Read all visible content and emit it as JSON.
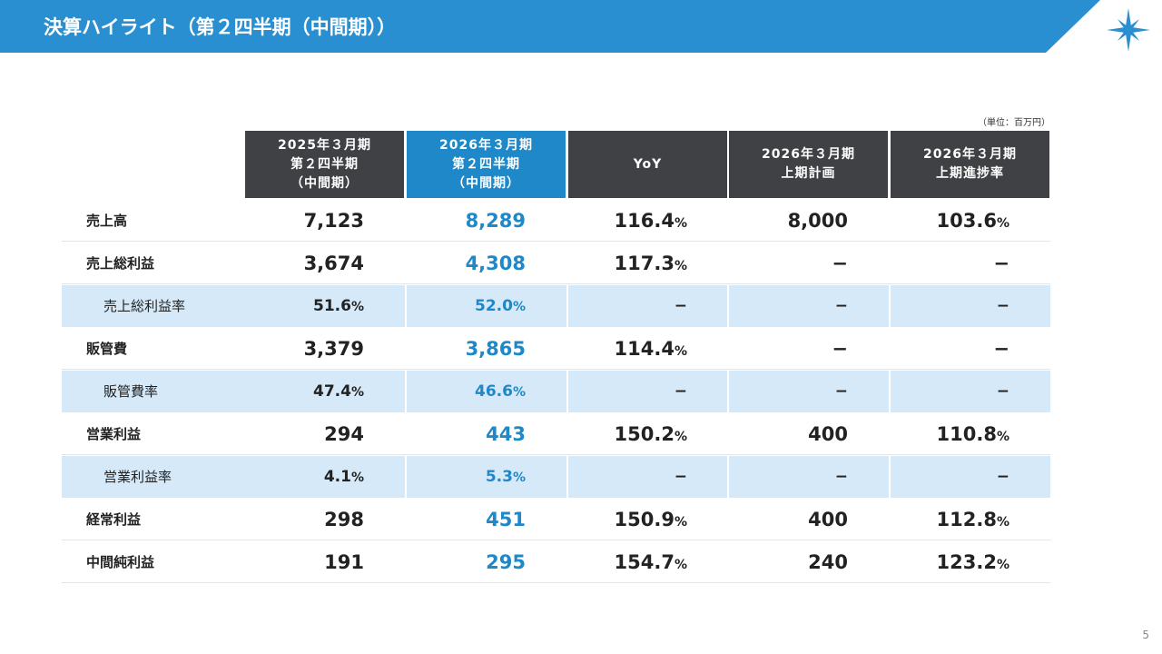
{
  "header": {
    "title": "決算ハイライト（第２四半期（中間期））"
  },
  "unit": "（単位：百万円）",
  "table": {
    "columns": [
      [
        "2025年３月期",
        "第２四半期",
        "（中間期）"
      ],
      [
        "2026年３月期",
        "第２四半期",
        "（中間期）"
      ],
      [
        "YoY"
      ],
      [
        "2026年３月期",
        "上期計画"
      ],
      [
        "2026年３月期",
        "上期進捗率"
      ]
    ],
    "rows": [
      [
        "売上高",
        "7,123",
        "8,289",
        "116.4%",
        "8,000",
        "103.6%"
      ],
      [
        "売上総利益",
        "3,674",
        "4,308",
        "117.3%",
        "−",
        "−"
      ],
      [
        "売上総利益率",
        "51.6%",
        "52.0%",
        "−",
        "−",
        "−"
      ],
      [
        "販管費",
        "3,379",
        "3,865",
        "114.4%",
        "−",
        "−"
      ],
      [
        "販管費率",
        "47.4%",
        "46.6%",
        "−",
        "−",
        "−"
      ],
      [
        "営業利益",
        "294",
        "443",
        "150.2%",
        "400",
        "110.8%"
      ],
      [
        "営業利益率",
        "4.1%",
        "5.3%",
        "−",
        "−",
        "−"
      ],
      [
        "経常利益",
        "298",
        "451",
        "150.9%",
        "400",
        "112.8%"
      ],
      [
        "中間純利益",
        "191",
        "295",
        "154.7%",
        "240",
        "123.2%"
      ]
    ],
    "ratio_rows": [
      2,
      4,
      6
    ]
  },
  "page_number": "5"
}
